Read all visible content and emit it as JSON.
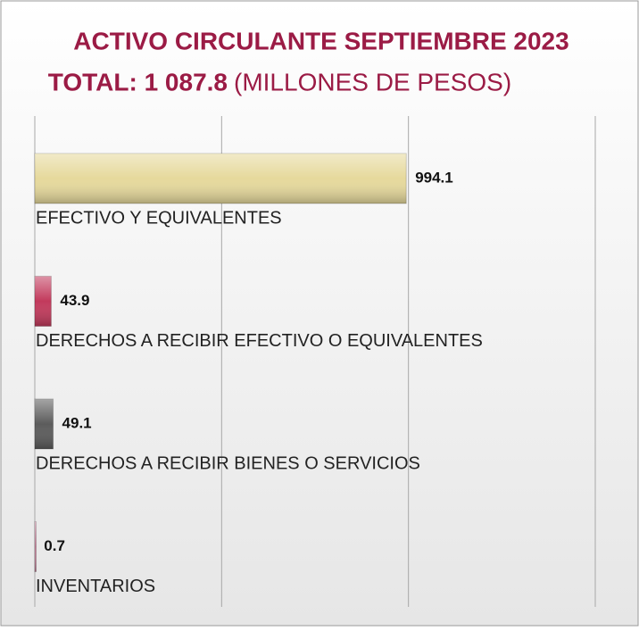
{
  "chart_data": {
    "type": "hbar",
    "title": "ACTIVO CIRCULANTE  SEPTIEMBRE 2023",
    "subtitle": "TOTAL:  1 087.8",
    "subtitle_note": "(MILLONES DE PESOS)",
    "categories": [
      "EFECTIVO Y EQUIVALENTES",
      "DERECHOS A RECIBIR  EFECTIVO O EQUIVALENTES",
      "DERECHOS A RECIBIR  BIENES O SERVICIOS",
      "INVENTARIOS"
    ],
    "values": [
      994.1,
      43.9,
      49.1,
      0.7
    ],
    "colors": [
      "#e6d99c",
      "#c23a5c",
      "#5c5c5c",
      "#c8809a"
    ],
    "xlim": [
      0,
      1500
    ],
    "xticks": [
      0,
      500,
      1000,
      1500
    ],
    "grid": true
  }
}
